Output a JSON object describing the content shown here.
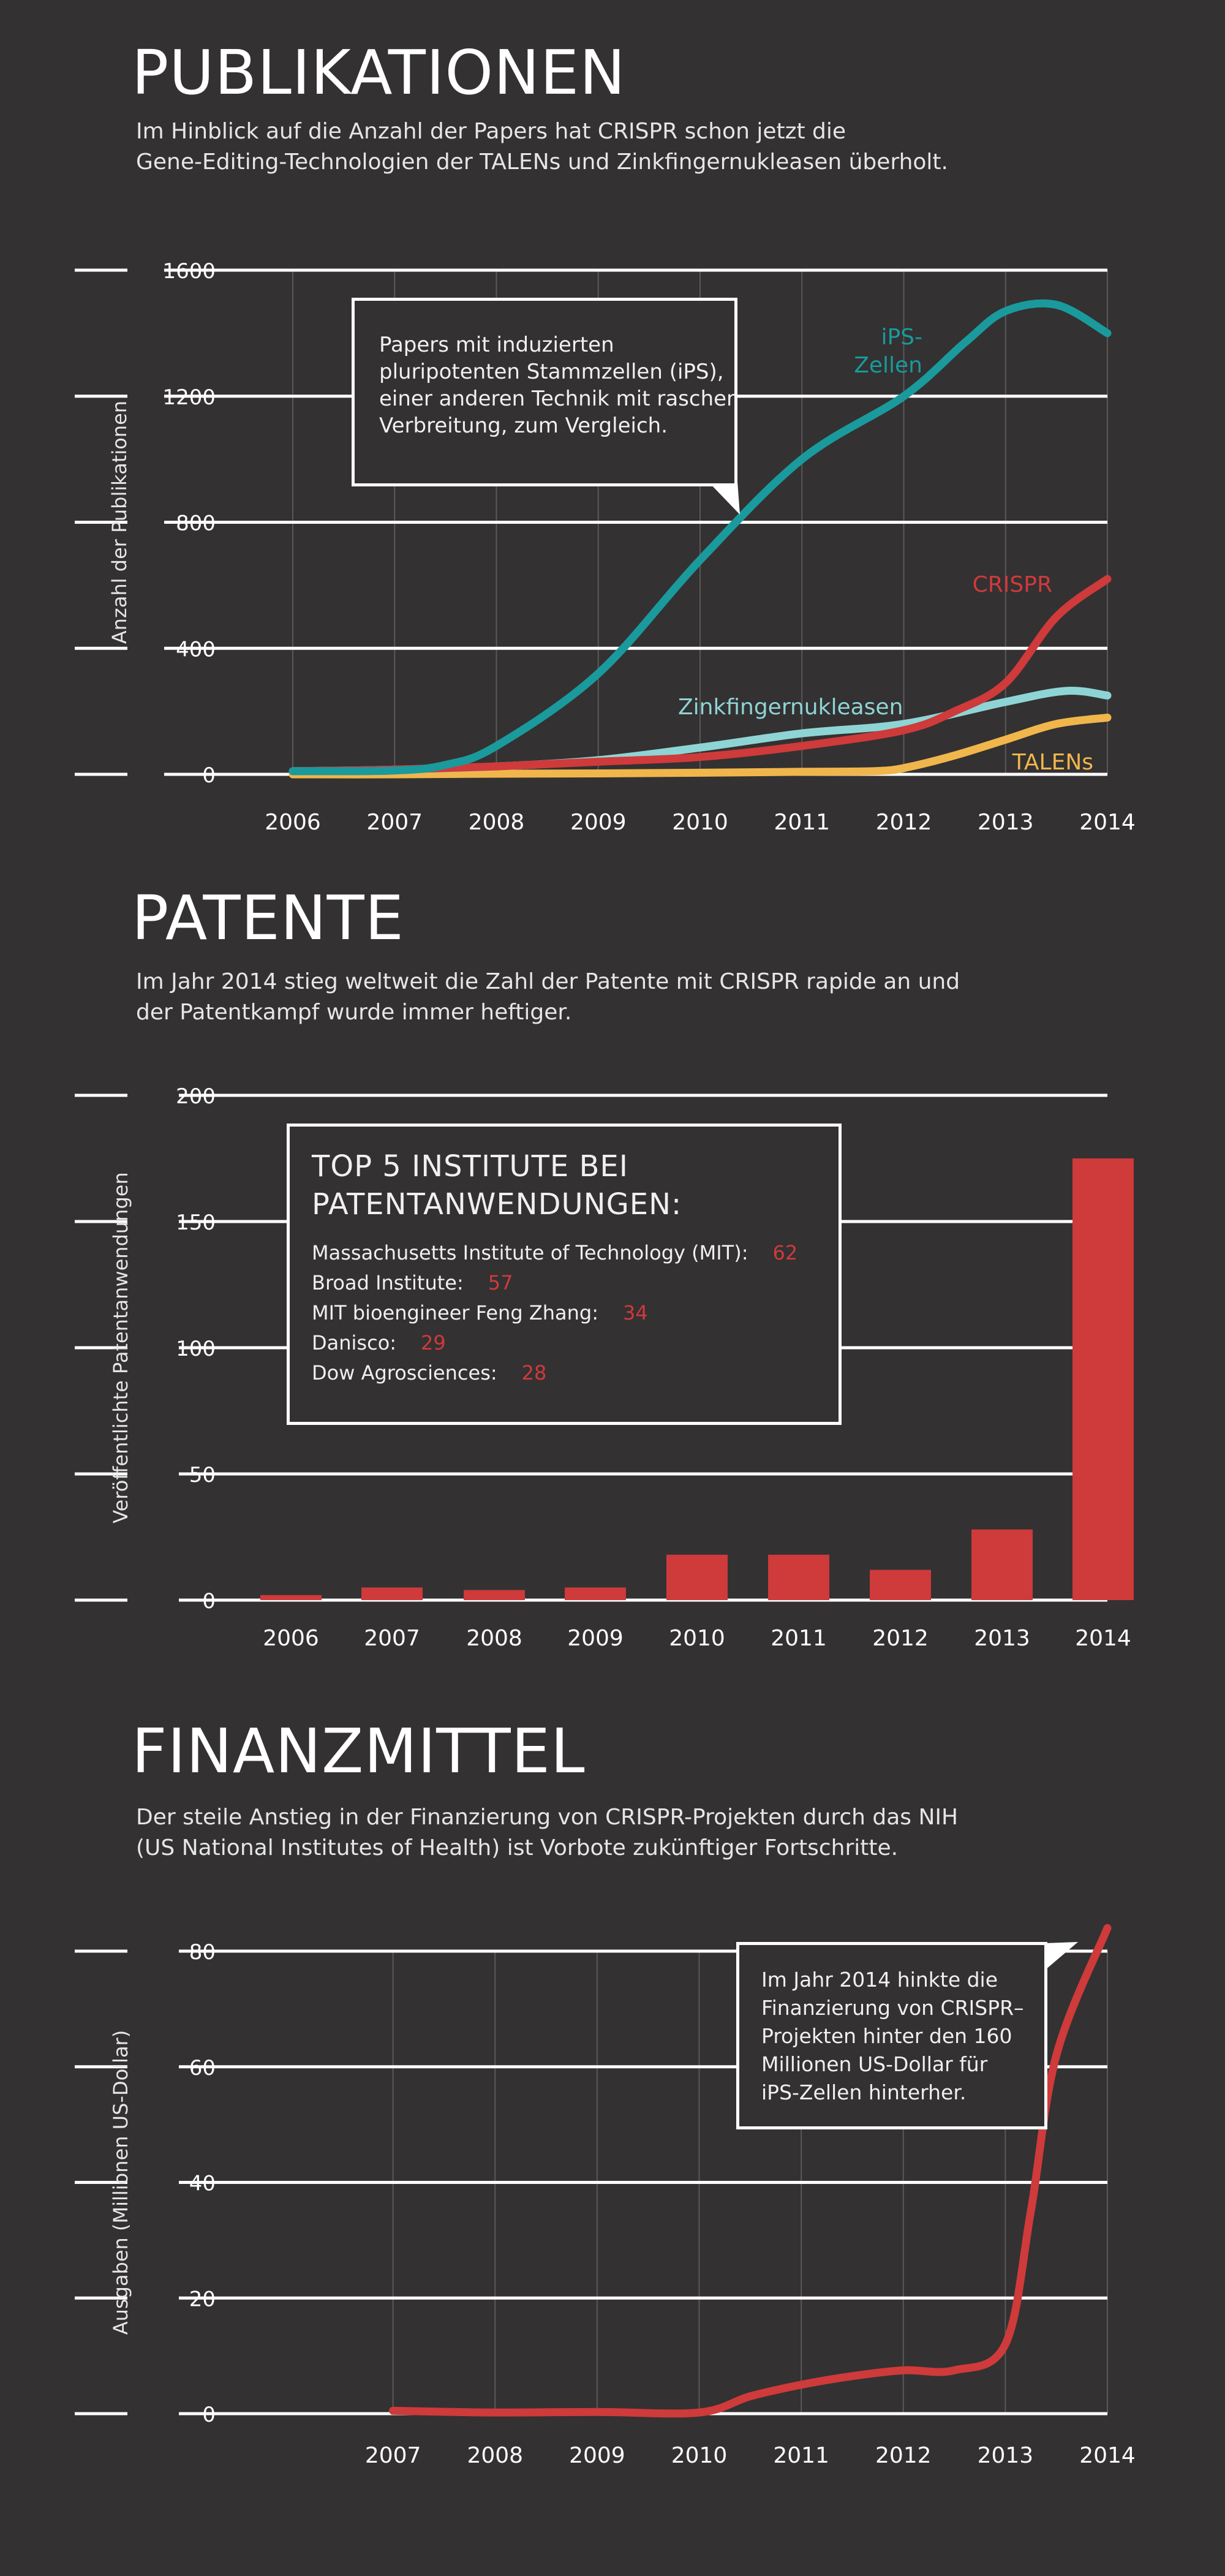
{
  "sections": {
    "publications": {
      "title": "PUBLIKATIONEN",
      "desc": [
        "Im Hinblick auf die Anzahl der Papers hat  CRISPR schon jetzt die",
        "Gene-Editing-Technologien der TALENs und Zinkfingernukleasen überholt."
      ],
      "note": [
        "Papers mit induzierten",
        "pluripotenten Stammzellen (iPS),",
        "einer anderen Technik mit rascher",
        "Verbreitung, zum Vergleich."
      ]
    },
    "patents": {
      "title": "PATENTE",
      "desc": [
        "Im Jahr 2014 stieg weltweit die Zahl der Patente mit CRISPR rapide an und",
        "der Patentkampf wurde immer heftiger."
      ],
      "box_title": [
        "TOP 5 INSTITUTE BEI",
        "PATENTANWENDUNGEN:"
      ],
      "institutes": [
        {
          "name": "Massachusetts Institute of Technology (MIT):",
          "value": "62"
        },
        {
          "name": "Broad Institute:",
          "value": "57"
        },
        {
          "name": "MIT bioengineer Feng Zhang:",
          "value": "34"
        },
        {
          "name": "Danisco:",
          "value": "29"
        },
        {
          "name": "Dow Agrosciences:",
          "value": "28"
        }
      ]
    },
    "funding": {
      "title": "FINANZMITTEL",
      "desc": [
        "Der steile Anstieg in der Finanzierung von CRISPR-Projekten durch das NIH",
        "(US National Institutes of  Health) ist Vorbote zukünftiger Fortschritte."
      ],
      "note": [
        "Im Jahr 2014 hinkte die",
        "Finanzierung von CRISPR–",
        "Projekten hinter den 160",
        "Millionen US-Dollar für",
        "iPS-Zellen hinterher."
      ]
    }
  },
  "colors": {
    "background": "#333132",
    "ips": "#1a9a9c",
    "crispr": "#cf3a3a",
    "zinc": "#8fd4d4",
    "talens": "#f0b64c",
    "grid": "#ffffff",
    "vgrid": "#5a5859"
  },
  "chart_data": [
    {
      "type": "line",
      "title": "PUBLIKATIONEN",
      "xlabel": "",
      "ylabel": "Anzahl der Publikationen",
      "x": [
        2006,
        2007,
        2008,
        2009,
        2010,
        2011,
        2012,
        2013,
        2014
      ],
      "xlim": [
        2006,
        2014
      ],
      "ylim": [
        0,
        1600
      ],
      "yticks": [
        0,
        400,
        800,
        1200,
        1600
      ],
      "ytick_labels": [
        "0",
        "400",
        "800",
        "1200",
        "1600"
      ],
      "series": [
        {
          "name": "iPS-Zellen",
          "label_lines": [
            "iPS-",
            "Zellen"
          ],
          "color_key": "ips",
          "x": [
            2006,
            2007,
            2007.5,
            2008,
            2009,
            2010,
            2011,
            2012,
            2012.6,
            2013,
            2013.5,
            2014
          ],
          "values": [
            10,
            12,
            30,
            90,
            320,
            680,
            1000,
            1200,
            1370,
            1470,
            1490,
            1400
          ]
        },
        {
          "name": "CRISPR",
          "label_lines": [
            "CRISPR"
          ],
          "color_key": "crispr",
          "x": [
            2006,
            2007,
            2008,
            2009,
            2010,
            2011,
            2012,
            2012.5,
            2013,
            2013.5,
            2014
          ],
          "values": [
            10,
            15,
            25,
            40,
            55,
            90,
            140,
            200,
            290,
            500,
            620
          ]
        },
        {
          "name": "Zinkfingernukleasen",
          "label_lines": [
            "Zinkfingernukleasen"
          ],
          "color_key": "zinc",
          "x": [
            2006,
            2007,
            2008,
            2009,
            2010,
            2011,
            2012,
            2013,
            2013.6,
            2014
          ],
          "values": [
            10,
            15,
            25,
            45,
            85,
            130,
            160,
            230,
            265,
            250
          ]
        },
        {
          "name": "TALENs",
          "label_lines": [
            "TALENs"
          ],
          "color_key": "talens",
          "x": [
            2006,
            2007,
            2008,
            2009,
            2010,
            2011,
            2011.7,
            2012,
            2012.5,
            2013,
            2013.5,
            2014
          ],
          "values": [
            0,
            0,
            2,
            3,
            5,
            8,
            10,
            20,
            60,
            110,
            160,
            180
          ]
        }
      ]
    },
    {
      "type": "bar",
      "title": "PATENTE",
      "xlabel": "",
      "ylabel": "Veröffentlichte Patentanwendungen",
      "categories": [
        "2006",
        "2007",
        "2008",
        "2009",
        "2010",
        "2011",
        "2012",
        "2013",
        "2014"
      ],
      "values": [
        2,
        5,
        4,
        5,
        18,
        18,
        12,
        28,
        175
      ],
      "ylim": [
        0,
        200
      ],
      "yticks": [
        0,
        50,
        100,
        150,
        200
      ],
      "ytick_labels": [
        "0",
        "50",
        "100",
        "150",
        "200"
      ]
    },
    {
      "type": "line",
      "title": "FINANZMITTEL",
      "xlabel": "",
      "ylabel": "Ausgaben (Millionen US-Dollar)",
      "x": [
        2007,
        2008,
        2009,
        2010,
        2010.5,
        2011,
        2011.5,
        2012,
        2012.5,
        2013,
        2013.25,
        2013.5,
        2014
      ],
      "xticks": [
        2007,
        2008,
        2009,
        2010,
        2011,
        2012,
        2013,
        2014
      ],
      "xlim": [
        2006,
        2014
      ],
      "ylim": [
        0,
        80
      ],
      "yticks": [
        0,
        20,
        40,
        60,
        80
      ],
      "ytick_labels": [
        "0",
        "20",
        "40",
        "60",
        "80"
      ],
      "series": [
        {
          "name": "CRISPR",
          "color_key": "crispr",
          "values": [
            0.5,
            0.2,
            0.3,
            0.2,
            3,
            5,
            6.5,
            7.5,
            7.5,
            12,
            35,
            62,
            84
          ]
        }
      ]
    }
  ]
}
